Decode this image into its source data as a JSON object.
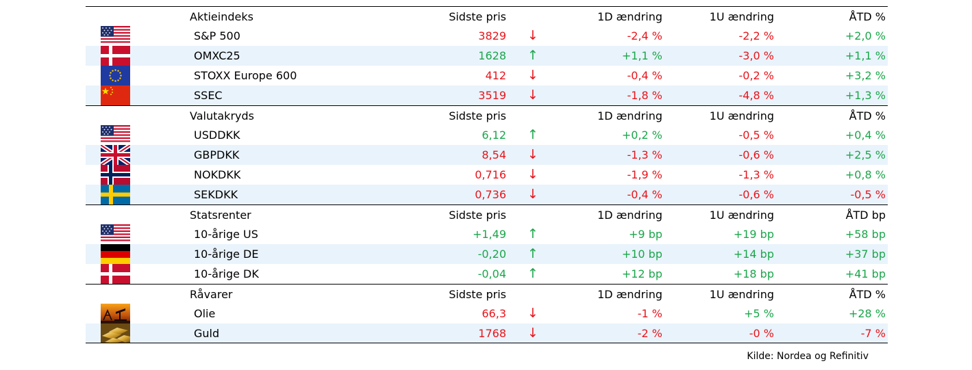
{
  "sections": [
    {
      "title": "Aktieindeks",
      "col_price": "Sidste pris",
      "col_1d": "1D ændring",
      "col_1w": "1U  ændring",
      "col_ytd": "ÅTD  %",
      "rows": [
        {
          "flag": "us-flag-icon",
          "name": "S&P 500",
          "price": "3829",
          "arrow": "↓",
          "d1": "-2,4 %",
          "w1": "-2,2 %",
          "ytd": "+2,0 %",
          "dir": "down",
          "d1_dir": "down",
          "w1_dir": "down",
          "ytd_dir": "up"
        },
        {
          "flag": "dk-flag-icon",
          "name": "OMXC25",
          "price": "1628",
          "arrow": "↑",
          "d1": "+1,1 %",
          "w1": "-3,0 %",
          "ytd": "+1,1 %",
          "dir": "up",
          "d1_dir": "up",
          "w1_dir": "down",
          "ytd_dir": "up"
        },
        {
          "flag": "eu-flag-icon",
          "name": "STOXX Europe 600",
          "price": "412",
          "arrow": "↓",
          "d1": "-0,4 %",
          "w1": "-0,2 %",
          "ytd": "+3,2 %",
          "dir": "down",
          "d1_dir": "down",
          "w1_dir": "down",
          "ytd_dir": "up"
        },
        {
          "flag": "cn-flag-icon",
          "name": "SSEC",
          "price": "3519",
          "arrow": "↓",
          "d1": "-1,8 %",
          "w1": "-4,8 %",
          "ytd": "+1,3 %",
          "dir": "down",
          "d1_dir": "down",
          "w1_dir": "down",
          "ytd_dir": "up"
        }
      ]
    },
    {
      "title": "Valutakryds",
      "col_price": "Sidste pris",
      "col_1d": "1D ændring",
      "col_1w": "1U  ændring",
      "col_ytd": "ÅTD  %",
      "rows": [
        {
          "flag": "us-flag-icon",
          "name": "USDDKK",
          "price": "6,12",
          "arrow": "↑",
          "d1": "+0,2 %",
          "w1": "-0,5 %",
          "ytd": "+0,4 %",
          "dir": "up",
          "d1_dir": "up",
          "w1_dir": "down",
          "ytd_dir": "up"
        },
        {
          "flag": "uk-flag-icon",
          "name": "GBPDKK",
          "price": "8,54",
          "arrow": "↓",
          "d1": "-1,3 %",
          "w1": "-0,6 %",
          "ytd": "+2,5 %",
          "dir": "down",
          "d1_dir": "down",
          "w1_dir": "down",
          "ytd_dir": "up"
        },
        {
          "flag": "no-flag-icon",
          "name": "NOKDKK",
          "price": "0,716",
          "arrow": "↓",
          "d1": "-1,9 %",
          "w1": "-1,3 %",
          "ytd": "+0,8 %",
          "dir": "down",
          "d1_dir": "down",
          "w1_dir": "down",
          "ytd_dir": "up"
        },
        {
          "flag": "se-flag-icon",
          "name": "SEKDKK",
          "price": "0,736",
          "arrow": "↓",
          "d1": "-0,4 %",
          "w1": "-0,6 %",
          "ytd": "-0,5 %",
          "dir": "down",
          "d1_dir": "down",
          "w1_dir": "down",
          "ytd_dir": "down"
        }
      ]
    },
    {
      "title": "Statsrenter",
      "col_price": "Sidste pris",
      "col_1d": "1D ændring",
      "col_1w": "1U  ændring",
      "col_ytd": "ÅTD bp",
      "rows": [
        {
          "flag": "us-flag-icon",
          "name": "10-årige US",
          "price": "+1,49",
          "arrow": "↑",
          "d1": "+9 bp",
          "w1": "+19 bp",
          "ytd": "+58 bp",
          "dir": "up",
          "d1_dir": "up",
          "w1_dir": "up",
          "ytd_dir": "up"
        },
        {
          "flag": "de-flag-icon",
          "name": "10-årige DE",
          "price": "-0,20",
          "arrow": "↑",
          "d1": "+10 bp",
          "w1": "+14 bp",
          "ytd": "+37 bp",
          "dir": "up",
          "d1_dir": "up",
          "w1_dir": "up",
          "ytd_dir": "up"
        },
        {
          "flag": "dk-flag-icon",
          "name": "10-årige DK",
          "price": "-0,04",
          "arrow": "↑",
          "d1": "+12 bp",
          "w1": "+18 bp",
          "ytd": "+41 bp",
          "dir": "up",
          "d1_dir": "up",
          "w1_dir": "up",
          "ytd_dir": "up"
        }
      ]
    },
    {
      "title": "Råvarer",
      "col_price": "Sidste pris",
      "col_1d": "1D ændring",
      "col_1w": "1U ændring",
      "col_ytd": "ÅTD %",
      "rows": [
        {
          "flag": "oil-icon",
          "name": "Olie",
          "price": "66,3",
          "arrow": "↓",
          "d1": "-1 %",
          "w1": "+5 %",
          "ytd": "+28 %",
          "dir": "down",
          "d1_dir": "down",
          "w1_dir": "up",
          "ytd_dir": "up"
        },
        {
          "flag": "gold-icon",
          "name": "Guld",
          "price": "1768",
          "arrow": "↓",
          "d1": "-2 %",
          "w1": "-0 %",
          "ytd": "-7 %",
          "dir": "down",
          "d1_dir": "down",
          "w1_dir": "down",
          "ytd_dir": "down"
        }
      ]
    }
  ],
  "source": "Kilde: Nordea og Refinitiv",
  "colors": {
    "up": "#1aa64a",
    "down": "#e8141b",
    "alt_row": "#e9f3fb"
  }
}
